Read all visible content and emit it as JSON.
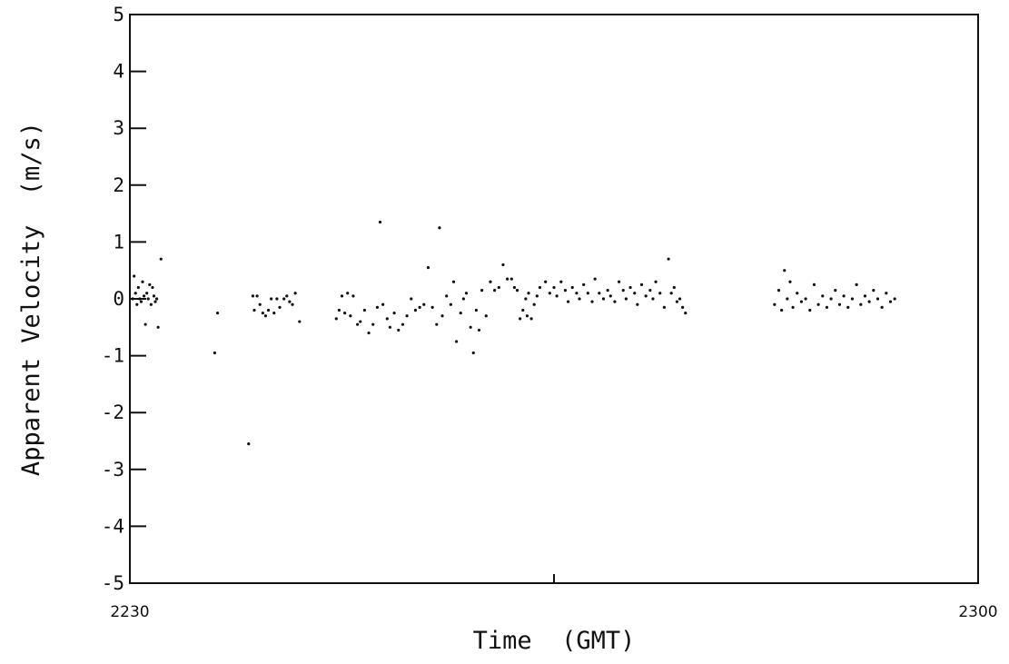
{
  "chart_data": {
    "type": "scatter",
    "xlabel": "Time  (GMT)",
    "ylabel": "Apparent Velocity  (m/s)",
    "x_tick_labels": [
      "2230",
      "2300"
    ],
    "x_unit": "minutes after 2230 GMT",
    "xlim": [
      0,
      30
    ],
    "ylim": [
      -5,
      5
    ],
    "y_ticks": [
      5,
      4,
      3,
      2,
      1,
      0,
      -1,
      -2,
      -3,
      -4,
      -5
    ],
    "grid": false,
    "marker_color": "#111111",
    "points": [
      [
        0.1,
        0.0
      ],
      [
        0.15,
        0.4
      ],
      [
        0.2,
        0.1
      ],
      [
        0.25,
        -0.1
      ],
      [
        0.3,
        0.2
      ],
      [
        0.35,
        0.0
      ],
      [
        0.4,
        -0.05
      ],
      [
        0.45,
        0.3
      ],
      [
        0.5,
        0.05
      ],
      [
        0.55,
        -0.45
      ],
      [
        0.6,
        0.1
      ],
      [
        0.65,
        0.0
      ],
      [
        0.7,
        0.25
      ],
      [
        0.75,
        -0.1
      ],
      [
        0.8,
        0.2
      ],
      [
        0.85,
        0.05
      ],
      [
        0.9,
        -0.05
      ],
      [
        0.95,
        0.0
      ],
      [
        1.0,
        -0.5
      ],
      [
        1.1,
        0.7
      ],
      [
        3.0,
        -0.95
      ],
      [
        3.1,
        -0.25
      ],
      [
        4.2,
        -2.55
      ],
      [
        4.35,
        0.05
      ],
      [
        4.4,
        -0.2
      ],
      [
        4.5,
        0.05
      ],
      [
        4.6,
        -0.1
      ],
      [
        4.7,
        -0.25
      ],
      [
        4.8,
        -0.3
      ],
      [
        4.9,
        -0.2
      ],
      [
        5.0,
        0.0
      ],
      [
        5.1,
        -0.25
      ],
      [
        5.2,
        0.0
      ],
      [
        5.3,
        -0.15
      ],
      [
        5.45,
        0.0
      ],
      [
        5.55,
        0.05
      ],
      [
        5.65,
        -0.05
      ],
      [
        5.75,
        -0.1
      ],
      [
        5.85,
        0.1
      ],
      [
        6.0,
        -0.4
      ],
      [
        7.3,
        -0.35
      ],
      [
        7.4,
        -0.2
      ],
      [
        7.5,
        0.05
      ],
      [
        7.6,
        -0.25
      ],
      [
        7.7,
        0.1
      ],
      [
        7.8,
        -0.3
      ],
      [
        7.9,
        0.05
      ],
      [
        8.05,
        -0.45
      ],
      [
        8.15,
        -0.4
      ],
      [
        8.3,
        -0.2
      ],
      [
        8.45,
        -0.6
      ],
      [
        8.6,
        -0.45
      ],
      [
        8.75,
        -0.15
      ],
      [
        8.85,
        1.35
      ],
      [
        8.95,
        -0.1
      ],
      [
        9.1,
        -0.35
      ],
      [
        9.2,
        -0.5
      ],
      [
        9.35,
        -0.25
      ],
      [
        9.5,
        -0.55
      ],
      [
        9.65,
        -0.45
      ],
      [
        9.8,
        -0.3
      ],
      [
        9.95,
        0.0
      ],
      [
        10.1,
        -0.2
      ],
      [
        10.25,
        -0.15
      ],
      [
        10.4,
        -0.1
      ],
      [
        10.55,
        0.55
      ],
      [
        10.7,
        -0.15
      ],
      [
        10.85,
        -0.45
      ],
      [
        10.95,
        1.25
      ],
      [
        11.05,
        -0.3
      ],
      [
        11.2,
        0.05
      ],
      [
        11.35,
        -0.1
      ],
      [
        11.45,
        0.3
      ],
      [
        11.55,
        -0.75
      ],
      [
        11.7,
        -0.25
      ],
      [
        11.8,
        0.0
      ],
      [
        11.9,
        0.1
      ],
      [
        12.05,
        -0.5
      ],
      [
        12.15,
        -0.95
      ],
      [
        12.25,
        -0.2
      ],
      [
        12.35,
        -0.55
      ],
      [
        12.45,
        0.15
      ],
      [
        12.6,
        -0.3
      ],
      [
        12.75,
        0.3
      ],
      [
        12.9,
        0.15
      ],
      [
        13.05,
        0.2
      ],
      [
        13.2,
        0.6
      ],
      [
        13.35,
        0.35
      ],
      [
        13.5,
        0.35
      ],
      [
        13.6,
        0.2
      ],
      [
        13.7,
        0.15
      ],
      [
        13.8,
        -0.35
      ],
      [
        13.9,
        -0.2
      ],
      [
        14.0,
        0.0
      ],
      [
        14.05,
        -0.3
      ],
      [
        14.1,
        0.1
      ],
      [
        14.2,
        -0.35
      ],
      [
        14.3,
        -0.1
      ],
      [
        14.4,
        0.05
      ],
      [
        14.5,
        0.2
      ],
      [
        14.7,
        0.3
      ],
      [
        14.85,
        0.1
      ],
      [
        15.0,
        0.2
      ],
      [
        15.1,
        0.05
      ],
      [
        15.25,
        0.3
      ],
      [
        15.4,
        0.15
      ],
      [
        15.5,
        -0.05
      ],
      [
        15.65,
        0.2
      ],
      [
        15.8,
        0.1
      ],
      [
        15.9,
        0.0
      ],
      [
        16.05,
        0.25
      ],
      [
        16.2,
        0.1
      ],
      [
        16.35,
        -0.05
      ],
      [
        16.45,
        0.35
      ],
      [
        16.6,
        0.1
      ],
      [
        16.75,
        0.0
      ],
      [
        16.9,
        0.15
      ],
      [
        17.0,
        0.05
      ],
      [
        17.15,
        -0.05
      ],
      [
        17.3,
        0.3
      ],
      [
        17.45,
        0.15
      ],
      [
        17.55,
        0.0
      ],
      [
        17.7,
        0.2
      ],
      [
        17.85,
        0.1
      ],
      [
        17.95,
        -0.1
      ],
      [
        18.1,
        0.25
      ],
      [
        18.25,
        0.05
      ],
      [
        18.4,
        0.15
      ],
      [
        18.5,
        0.0
      ],
      [
        18.6,
        0.3
      ],
      [
        18.75,
        0.1
      ],
      [
        18.9,
        -0.15
      ],
      [
        19.05,
        0.7
      ],
      [
        19.15,
        0.1
      ],
      [
        19.25,
        0.2
      ],
      [
        19.35,
        -0.05
      ],
      [
        19.45,
        0.0
      ],
      [
        19.55,
        -0.15
      ],
      [
        19.65,
        -0.25
      ],
      [
        22.8,
        -0.1
      ],
      [
        22.95,
        0.15
      ],
      [
        23.05,
        -0.2
      ],
      [
        23.15,
        0.5
      ],
      [
        23.25,
        0.0
      ],
      [
        23.35,
        0.3
      ],
      [
        23.45,
        -0.15
      ],
      [
        23.6,
        0.1
      ],
      [
        23.75,
        -0.05
      ],
      [
        23.9,
        0.0
      ],
      [
        24.05,
        -0.2
      ],
      [
        24.2,
        0.25
      ],
      [
        24.35,
        -0.1
      ],
      [
        24.5,
        0.05
      ],
      [
        24.65,
        -0.15
      ],
      [
        24.8,
        0.0
      ],
      [
        24.95,
        0.15
      ],
      [
        25.1,
        -0.1
      ],
      [
        25.25,
        0.05
      ],
      [
        25.4,
        -0.15
      ],
      [
        25.55,
        0.0
      ],
      [
        25.7,
        0.25
      ],
      [
        25.85,
        -0.1
      ],
      [
        26.0,
        0.05
      ],
      [
        26.15,
        -0.05
      ],
      [
        26.3,
        0.15
      ],
      [
        26.45,
        0.0
      ],
      [
        26.6,
        -0.15
      ],
      [
        26.75,
        0.1
      ],
      [
        26.9,
        -0.05
      ],
      [
        27.05,
        0.0
      ]
    ]
  }
}
